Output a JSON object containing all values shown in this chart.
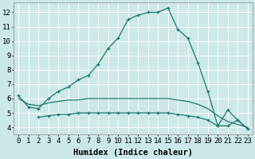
{
  "xlabel": "Humidex (Indice chaleur)",
  "background_color": "#cce8e8",
  "grid_color": "#ffffff",
  "line_color": "#1a7a6e",
  "xlim": [
    -0.5,
    23.5
  ],
  "ylim": [
    3.5,
    12.7
  ],
  "xticks": [
    0,
    1,
    2,
    3,
    4,
    5,
    6,
    7,
    8,
    9,
    10,
    11,
    12,
    13,
    14,
    15,
    16,
    17,
    18,
    19,
    20,
    21,
    22,
    23
  ],
  "yticks": [
    4,
    5,
    6,
    7,
    8,
    9,
    10,
    11,
    12
  ],
  "series": [
    {
      "x": [
        0,
        1,
        2,
        3,
        4,
        5,
        6,
        7,
        8,
        9,
        10,
        11,
        12,
        13,
        14,
        15,
        16,
        17,
        18,
        19,
        20,
        21,
        22,
        23
      ],
      "y": [
        6.2,
        5.4,
        5.3,
        6.0,
        6.5,
        6.8,
        7.3,
        7.6,
        8.4,
        9.5,
        10.2,
        11.5,
        11.8,
        12.0,
        12.0,
        12.3,
        10.8,
        10.2,
        8.5,
        6.5,
        4.1,
        5.2,
        4.5,
        3.9
      ],
      "marker": "+"
    },
    {
      "x": [
        0,
        1,
        2,
        3,
        4,
        5,
        6,
        7,
        8,
        9,
        10,
        11,
        12,
        13,
        14,
        15,
        16,
        17,
        18,
        19,
        20,
        21,
        22,
        23
      ],
      "y": [
        6.0,
        5.6,
        5.5,
        5.7,
        5.8,
        5.9,
        5.9,
        6.0,
        6.0,
        6.0,
        6.0,
        6.0,
        6.0,
        6.0,
        6.0,
        6.0,
        5.9,
        5.8,
        5.6,
        5.3,
        4.8,
        4.4,
        4.2,
        4.0
      ],
      "marker": null
    },
    {
      "x": [
        2,
        3,
        4,
        5,
        6,
        7,
        8,
        9,
        10,
        11,
        12,
        13,
        14,
        15,
        16,
        17,
        18,
        19,
        20,
        21,
        22,
        23
      ],
      "y": [
        4.7,
        4.8,
        4.9,
        4.9,
        5.0,
        5.0,
        5.0,
        5.0,
        5.0,
        5.0,
        5.0,
        5.0,
        5.0,
        5.0,
        4.9,
        4.8,
        4.7,
        4.5,
        4.1,
        4.1,
        4.5,
        3.9
      ],
      "marker": "+"
    }
  ],
  "tick_fontsize": 6.5,
  "xlabel_fontsize": 7.5
}
